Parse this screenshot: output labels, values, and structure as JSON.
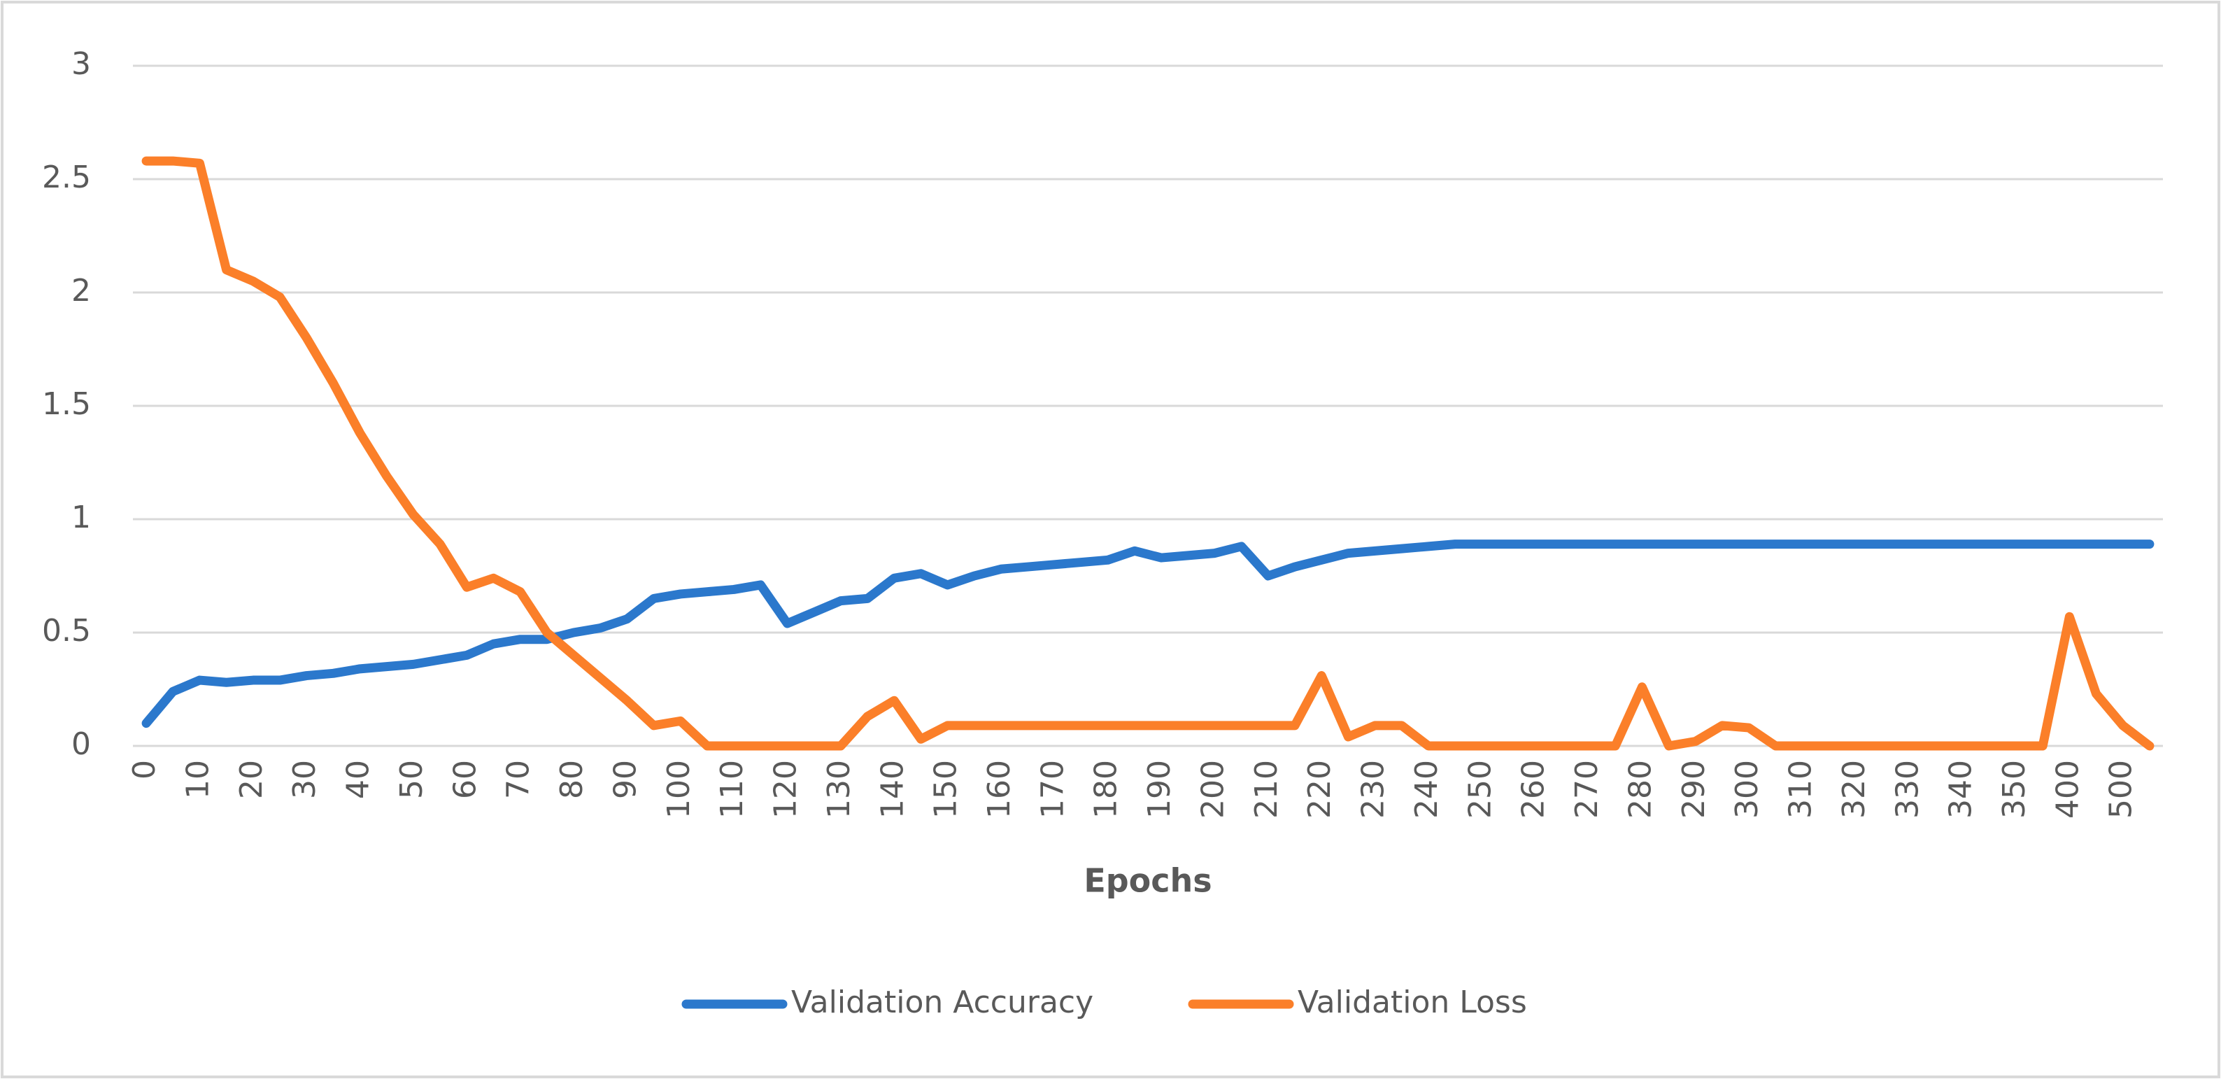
{
  "chart_data": {
    "type": "line",
    "xlabel": "Epochs",
    "categories": [
      0,
      null,
      10,
      null,
      20,
      null,
      30,
      null,
      40,
      null,
      50,
      null,
      60,
      null,
      70,
      null,
      80,
      null,
      90,
      null,
      100,
      null,
      110,
      null,
      120,
      null,
      130,
      null,
      140,
      null,
      150,
      null,
      160,
      null,
      170,
      null,
      180,
      null,
      190,
      null,
      200,
      null,
      210,
      null,
      220,
      null,
      230,
      null,
      240,
      null,
      250,
      null,
      260,
      null,
      270,
      null,
      280,
      null,
      290,
      null,
      300,
      null,
      310,
      null,
      320,
      null,
      330,
      null,
      340,
      null,
      350,
      null,
      400,
      null,
      500,
      null
    ],
    "series": [
      {
        "name": "Validation Accuracy",
        "color": "#2b78cc",
        "values": [
          0.1,
          0.24,
          0.29,
          0.28,
          0.29,
          0.29,
          0.31,
          0.32,
          0.34,
          0.35,
          0.36,
          0.38,
          0.4,
          0.45,
          0.47,
          0.47,
          0.5,
          0.52,
          0.56,
          0.65,
          0.67,
          0.68,
          0.69,
          0.71,
          0.54,
          0.59,
          0.64,
          0.65,
          0.74,
          0.76,
          0.71,
          0.75,
          0.78,
          0.79,
          0.8,
          0.81,
          0.82,
          0.86,
          0.83,
          0.84,
          0.85,
          0.88,
          0.75,
          0.79,
          0.82,
          0.85,
          0.86,
          0.87,
          0.88,
          0.89,
          0.89,
          0.89,
          0.89,
          0.89,
          0.89,
          0.89,
          0.89,
          0.89,
          0.89,
          0.89,
          0.89,
          0.89,
          0.89,
          0.89,
          0.89,
          0.89,
          0.89,
          0.89,
          0.89,
          0.89,
          0.89,
          0.89,
          0.89,
          0.89,
          0.89,
          0.89
        ]
      },
      {
        "name": "Validation Loss",
        "color": "#fb7f29",
        "values": [
          2.58,
          2.58,
          2.57,
          2.1,
          2.05,
          1.98,
          1.8,
          1.6,
          1.38,
          1.19,
          1.02,
          0.89,
          0.7,
          0.74,
          0.68,
          0.5,
          0.4,
          0.3,
          0.2,
          0.09,
          0.11,
          0,
          0,
          0,
          0,
          0,
          0,
          0.13,
          0.2,
          0.03,
          0.09,
          0.09,
          0.09,
          0.09,
          0.09,
          0.09,
          0.09,
          0.09,
          0.09,
          0.09,
          0.09,
          0.09,
          0.09,
          0.09,
          0.31,
          0.04,
          0.09,
          0.09,
          0,
          0,
          0,
          0,
          0,
          0,
          0,
          0,
          0.26,
          0,
          0.02,
          0.09,
          0.08,
          0,
          0,
          0,
          0,
          0,
          0,
          0,
          0,
          0,
          0,
          0,
          0.57,
          0.23,
          0.09,
          0
        ]
      }
    ],
    "ylim": [
      0,
      3
    ],
    "yticks": [
      0,
      0.5,
      1,
      1.5,
      2,
      2.5,
      3
    ],
    "grid": true,
    "legend": "bottom"
  }
}
